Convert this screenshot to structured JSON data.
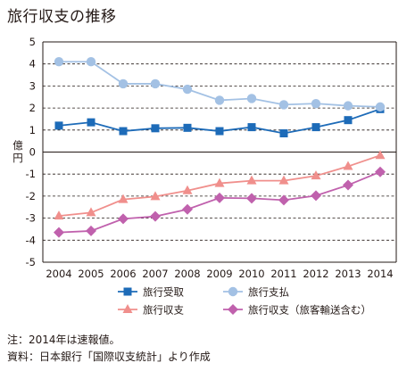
{
  "chart_data": {
    "type": "line",
    "title": "旅行収支の推移",
    "ylabel": "億円",
    "xlabel": "",
    "ylim": [
      -5,
      5
    ],
    "y_ticks": [
      5,
      4,
      3,
      2,
      1,
      0,
      -1,
      -2,
      -3,
      -4,
      -5
    ],
    "categories": [
      "2004",
      "2005",
      "2006",
      "2007",
      "2008",
      "2009",
      "2010",
      "2011",
      "2012",
      "2013",
      "2014"
    ],
    "grid": "horizontal dashed",
    "legend_position": "bottom",
    "series": [
      {
        "name": "旅行受取",
        "color": "#1d6bb8",
        "marker": "square",
        "values": [
          1.2,
          1.35,
          0.95,
          1.08,
          1.1,
          0.95,
          1.13,
          0.85,
          1.13,
          1.45,
          1.95
        ]
      },
      {
        "name": "旅行支払",
        "color": "#a3c1e4",
        "marker": "circle",
        "values": [
          4.1,
          4.1,
          3.1,
          3.1,
          2.85,
          2.35,
          2.43,
          2.15,
          2.2,
          2.1,
          2.05
        ]
      },
      {
        "name": "旅行収支",
        "color": "#f08f8c",
        "marker": "triangle",
        "values": [
          -2.9,
          -2.75,
          -2.15,
          -2.02,
          -1.75,
          -1.42,
          -1.3,
          -1.3,
          -1.08,
          -0.65,
          -0.15
        ]
      },
      {
        "name": "旅行収支（旅客輸送含む）",
        "color": "#c061ad",
        "marker": "diamond",
        "values": [
          -3.65,
          -3.58,
          -3.03,
          -2.92,
          -2.6,
          -2.08,
          -2.1,
          -2.18,
          -1.98,
          -1.5,
          -0.9
        ]
      }
    ]
  },
  "notes": {
    "line1": "注：2014年は速報値。",
    "line2": "資料：日本銀行「国際収支統計」より作成"
  }
}
